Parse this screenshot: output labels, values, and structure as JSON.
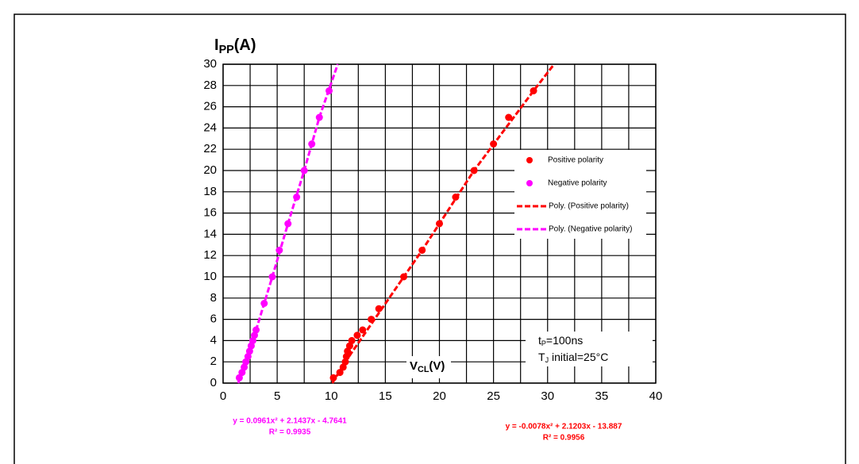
{
  "chart_data": {
    "type": "scatter",
    "y_label": {
      "main": "I",
      "sub": "PP",
      "rest": "(A)"
    },
    "x_label": {
      "main": "V",
      "sub": "CL",
      "rest": "(V)"
    },
    "xlim": [
      0,
      40
    ],
    "xticks": [
      0,
      5,
      10,
      15,
      20,
      25,
      30,
      35,
      40
    ],
    "x_minor_ticks": [
      2.5,
      7.5,
      12.5,
      17.5,
      22.5,
      27.5,
      32.5,
      37.5
    ],
    "ylim": [
      0,
      30
    ],
    "yticks": [
      0,
      2,
      4,
      6,
      8,
      10,
      12,
      14,
      16,
      18,
      20,
      22,
      24,
      26,
      28,
      30
    ],
    "grid": true,
    "series": [
      {
        "name": "Positive polarity",
        "color": "#ff0000",
        "style": "marker",
        "x": [
          10.2,
          10.8,
          11.1,
          11.3,
          11.4,
          11.5,
          11.7,
          11.9,
          12.4,
          12.9,
          13.7,
          14.4,
          16.7,
          18.4,
          20.0,
          21.5,
          23.2,
          25.0,
          26.4,
          28.7
        ],
        "values": [
          0.5,
          1,
          1.5,
          2,
          2.5,
          3,
          3.5,
          4,
          4.5,
          5,
          6,
          7,
          10,
          12.5,
          15,
          17.5,
          20,
          22.5,
          25,
          27.5
        ]
      },
      {
        "name": "Negative polarity",
        "color": "#ff00ff",
        "style": "marker",
        "x": [
          1.5,
          1.75,
          1.95,
          2.1,
          2.3,
          2.45,
          2.6,
          2.75,
          2.9,
          3.05,
          3.8,
          4.55,
          5.2,
          6.0,
          6.8,
          7.5,
          8.2,
          8.9,
          9.8
        ],
        "values": [
          0.5,
          1,
          1.5,
          2,
          2.5,
          3,
          3.5,
          4,
          4.5,
          5,
          7.5,
          10,
          12.5,
          15,
          17.5,
          20,
          22.5,
          25,
          27.5
        ]
      },
      {
        "name": "Poly. (Positive polarity)",
        "color": "#ff0000",
        "style": "dashed",
        "x": [
          10.1,
          11.3,
          14.0,
          18.4,
          23.2,
          28.7,
          30.6
        ],
        "values": [
          0,
          2,
          6,
          12.5,
          20,
          27.5,
          30
        ]
      },
      {
        "name": "Poly. (Negative polarity)",
        "color": "#ff00ff",
        "style": "dashed",
        "x": [
          1.4,
          2.1,
          3.05,
          4.55,
          6.0,
          7.5,
          8.9,
          10.6
        ],
        "values": [
          0,
          2,
          5,
          10,
          15,
          20,
          25,
          30
        ]
      }
    ],
    "annotations": {
      "pulse": {
        "main": "t",
        "sub": "P",
        "rest": "=100ns"
      },
      "temp": {
        "main": "T",
        "sub": "J",
        "rest": " initial=25°C"
      },
      "neg_equation": {
        "text": "y = 0.0961x² + 2.1437x  - 4.7641",
        "r2": "R² = 0.9935",
        "color": "#ff00ff"
      },
      "pos_equation": {
        "text": "y = -0.0078x² + 2.1203x  - 13.887",
        "r2": "R² = 0.9956",
        "color": "#ff0000"
      }
    }
  }
}
